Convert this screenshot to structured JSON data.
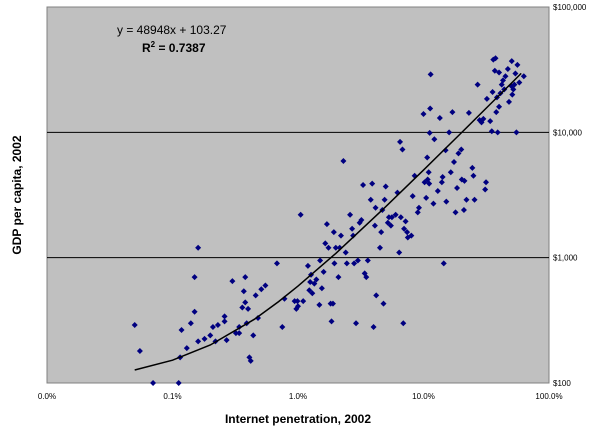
{
  "chart_data": {
    "type": "scatter",
    "xlabel": "Internet penetration, 2002",
    "ylabel": "GDP per capita, 2002",
    "x_scale": "log",
    "y_scale": "log",
    "xlim": [
      0.0001,
      1.0
    ],
    "ylim": [
      100,
      100000
    ],
    "x_ticks": [
      {
        "value": 0.0001,
        "label": "0.0%"
      },
      {
        "value": 0.001,
        "label": "0.1%"
      },
      {
        "value": 0.01,
        "label": "1.0%"
      },
      {
        "value": 0.1,
        "label": "10.0%"
      },
      {
        "value": 1.0,
        "label": "100.0%"
      }
    ],
    "y_ticks": [
      {
        "value": 100,
        "label": "$100"
      },
      {
        "value": 1000,
        "label": "$1,000"
      },
      {
        "value": 10000,
        "label": "$10,000"
      },
      {
        "value": 100000,
        "label": "$100,000"
      }
    ],
    "grid": "horizontal",
    "plot_background": "#c0c0c0",
    "marker_color": "#000080",
    "trendline_color": "#000000",
    "annotations": {
      "equation": "y = 48948x + 103.27",
      "r_squared": "R",
      "r_squared_sup": "2",
      "r_squared_value": " = 0.7387"
    },
    "trendline": {
      "x": [
        0.0005,
        0.001,
        0.002,
        0.0045,
        0.007,
        0.01,
        0.02,
        0.05,
        0.1,
        0.2,
        0.4,
        0.6
      ],
      "y": [
        127,
        152,
        201,
        323,
        446,
        593,
        1082,
        2550,
        5000,
        9900,
        19700,
        29500
      ]
    },
    "points": [
      [
        0.0005,
        290
      ],
      [
        0.00055,
        180
      ],
      [
        0.0007,
        100
      ],
      [
        0.00112,
        100
      ],
      [
        0.00115,
        160
      ],
      [
        0.00118,
        265
      ],
      [
        0.0013,
        190
      ],
      [
        0.0014,
        300
      ],
      [
        0.0015,
        370
      ],
      [
        0.0015,
        700
      ],
      [
        0.0016,
        1200
      ],
      [
        0.0016,
        215
      ],
      [
        0.0018,
        225
      ],
      [
        0.002,
        240
      ],
      [
        0.0021,
        280
      ],
      [
        0.0022,
        215
      ],
      [
        0.0023,
        290
      ],
      [
        0.0026,
        340
      ],
      [
        0.0026,
        310
      ],
      [
        0.0027,
        220
      ],
      [
        0.003,
        650
      ],
      [
        0.0032,
        250
      ],
      [
        0.0034,
        250
      ],
      [
        0.0034,
        280
      ],
      [
        0.0036,
        400
      ],
      [
        0.0037,
        540
      ],
      [
        0.0038,
        700
      ],
      [
        0.0038,
        440
      ],
      [
        0.0039,
        300
      ],
      [
        0.004,
        390
      ],
      [
        0.0041,
        160
      ],
      [
        0.0042,
        150
      ],
      [
        0.0044,
        240
      ],
      [
        0.0046,
        500
      ],
      [
        0.0048,
        330
      ],
      [
        0.0051,
        560
      ],
      [
        0.0055,
        600
      ],
      [
        0.0068,
        900
      ],
      [
        0.0075,
        280
      ],
      [
        0.0078,
        470
      ],
      [
        0.0094,
        450
      ],
      [
        0.0097,
        390
      ],
      [
        0.0099,
        450
      ],
      [
        0.01,
        410
      ],
      [
        0.0105,
        2200
      ],
      [
        0.011,
        450
      ],
      [
        0.012,
        860
      ],
      [
        0.0123,
        550
      ],
      [
        0.0125,
        640
      ],
      [
        0.0127,
        730
      ],
      [
        0.013,
        520
      ],
      [
        0.0135,
        620
      ],
      [
        0.014,
        670
      ],
      [
        0.0148,
        420
      ],
      [
        0.015,
        950
      ],
      [
        0.0155,
        570
      ],
      [
        0.016,
        770
      ],
      [
        0.0165,
        1300
      ],
      [
        0.017,
        1850
      ],
      [
        0.0175,
        1200
      ],
      [
        0.0182,
        430
      ],
      [
        0.0185,
        310
      ],
      [
        0.019,
        430
      ],
      [
        0.0193,
        1600
      ],
      [
        0.0195,
        900
      ],
      [
        0.02,
        1200
      ],
      [
        0.021,
        700
      ],
      [
        0.0215,
        1200
      ],
      [
        0.022,
        1500
      ],
      [
        0.023,
        5900
      ],
      [
        0.024,
        1100
      ],
      [
        0.0245,
        900
      ],
      [
        0.026,
        2200
      ],
      [
        0.027,
        1700
      ],
      [
        0.0275,
        1500
      ],
      [
        0.028,
        900
      ],
      [
        0.029,
        300
      ],
      [
        0.03,
        950
      ],
      [
        0.031,
        1900
      ],
      [
        0.032,
        2000
      ],
      [
        0.033,
        3800
      ],
      [
        0.034,
        750
      ],
      [
        0.035,
        700
      ],
      [
        0.036,
        950
      ],
      [
        0.038,
        2900
      ],
      [
        0.039,
        3900
      ],
      [
        0.04,
        280
      ],
      [
        0.041,
        1800
      ],
      [
        0.0415,
        2500
      ],
      [
        0.042,
        500
      ],
      [
        0.045,
        1200
      ],
      [
        0.046,
        1600
      ],
      [
        0.047,
        2400
      ],
      [
        0.048,
        430
      ],
      [
        0.049,
        2900
      ],
      [
        0.05,
        3700
      ],
      [
        0.052,
        1900
      ],
      [
        0.053,
        2100
      ],
      [
        0.055,
        1800
      ],
      [
        0.056,
        2100
      ],
      [
        0.06,
        2200
      ],
      [
        0.062,
        3300
      ],
      [
        0.064,
        1100
      ],
      [
        0.065,
        8400
      ],
      [
        0.066,
        2100
      ],
      [
        0.068,
        7300
      ],
      [
        0.069,
        300
      ],
      [
        0.07,
        1700
      ],
      [
        0.072,
        1950
      ],
      [
        0.074,
        1600
      ],
      [
        0.075,
        1450
      ],
      [
        0.08,
        1500
      ],
      [
        0.082,
        3100
      ],
      [
        0.085,
        4500
      ],
      [
        0.09,
        2300
      ],
      [
        0.092,
        2500
      ],
      [
        0.1,
        14000
      ],
      [
        0.102,
        4000
      ],
      [
        0.105,
        3000
      ],
      [
        0.107,
        6300
      ],
      [
        0.108,
        4200
      ],
      [
        0.11,
        4800
      ],
      [
        0.111,
        3900
      ],
      [
        0.112,
        9900
      ],
      [
        0.113,
        15500
      ],
      [
        0.114,
        29000
      ],
      [
        0.12,
        2700
      ],
      [
        0.122,
        8800
      ],
      [
        0.13,
        3400
      ],
      [
        0.135,
        13000
      ],
      [
        0.14,
        4000
      ],
      [
        0.142,
        4400
      ],
      [
        0.145,
        900
      ],
      [
        0.15,
        7200
      ],
      [
        0.152,
        2800
      ],
      [
        0.16,
        10000
      ],
      [
        0.165,
        4800
      ],
      [
        0.17,
        14500
      ],
      [
        0.175,
        5800
      ],
      [
        0.18,
        2300
      ],
      [
        0.185,
        3600
      ],
      [
        0.19,
        6800
      ],
      [
        0.2,
        7300
      ],
      [
        0.202,
        4200
      ],
      [
        0.21,
        2400
      ],
      [
        0.212,
        4100
      ],
      [
        0.22,
        2900
      ],
      [
        0.23,
        14300
      ],
      [
        0.245,
        5200
      ],
      [
        0.25,
        4500
      ],
      [
        0.255,
        2900
      ],
      [
        0.27,
        24000
      ],
      [
        0.28,
        12500
      ],
      [
        0.3,
        12800
      ],
      [
        0.31,
        3500
      ],
      [
        0.315,
        4000
      ],
      [
        0.32,
        18500
      ],
      [
        0.34,
        12300
      ],
      [
        0.35,
        10200
      ],
      [
        0.355,
        21000
      ],
      [
        0.36,
        38000
      ],
      [
        0.37,
        31000
      ],
      [
        0.375,
        39000
      ],
      [
        0.38,
        14500
      ],
      [
        0.385,
        19000
      ],
      [
        0.39,
        10000
      ],
      [
        0.4,
        30000
      ],
      [
        0.41,
        20500
      ],
      [
        0.42,
        24000
      ],
      [
        0.43,
        26000
      ],
      [
        0.44,
        22000
      ],
      [
        0.45,
        28000
      ],
      [
        0.47,
        32000
      ],
      [
        0.48,
        17500
      ],
      [
        0.5,
        23500
      ],
      [
        0.505,
        37000
      ],
      [
        0.51,
        20000
      ],
      [
        0.52,
        22000
      ],
      [
        0.53,
        24000
      ],
      [
        0.54,
        29500
      ],
      [
        0.55,
        10000
      ],
      [
        0.56,
        34500
      ],
      [
        0.58,
        25000
      ],
      [
        0.63,
        28000
      ],
      [
        0.4,
        16000
      ],
      [
        0.29,
        12000
      ]
    ]
  }
}
